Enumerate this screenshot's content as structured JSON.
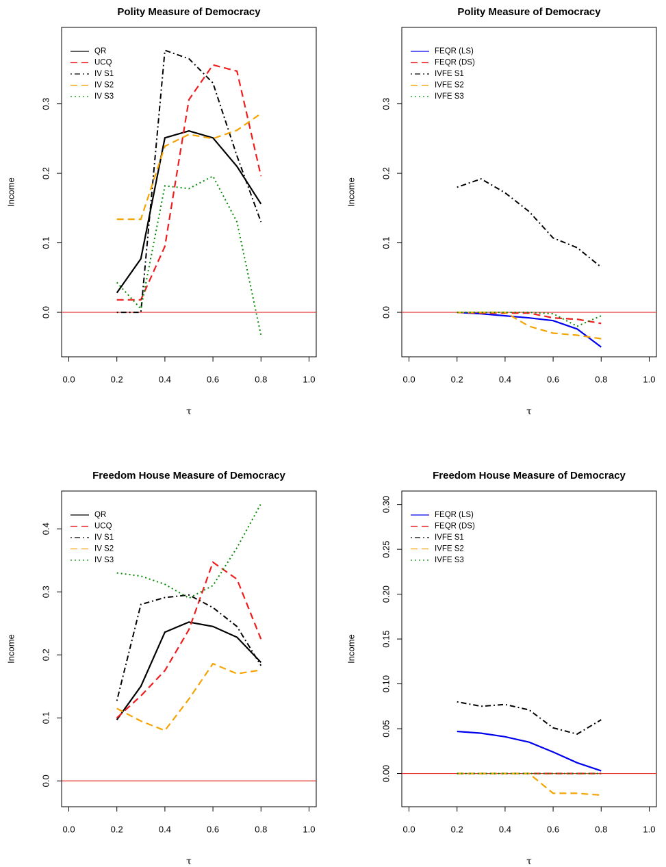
{
  "chart_data": [
    {
      "type": "line",
      "title": "Polity Measure of Democracy",
      "xlabel": "τ",
      "ylabel": "Income",
      "x": [
        0.2,
        0.3,
        0.4,
        0.5,
        0.6,
        0.7,
        0.8
      ],
      "xlim": [
        -0.03,
        1.03
      ],
      "ylim": [
        -0.064,
        0.41
      ],
      "xticks": [
        {
          "value": 0,
          "label": "0.0"
        },
        {
          "value": 0.2,
          "label": "0.2"
        },
        {
          "value": 0.4,
          "label": "0.4"
        },
        {
          "value": 0.6,
          "label": "0.6"
        },
        {
          "value": 0.8,
          "label": "0.8"
        },
        {
          "value": 1,
          "label": "1.0"
        }
      ],
      "yticks": [
        {
          "value": 0,
          "label": "0.0"
        },
        {
          "value": 0.1,
          "label": "0.1"
        },
        {
          "value": 0.2,
          "label": "0.2"
        },
        {
          "value": 0.3,
          "label": "0.3"
        }
      ],
      "hline": 0,
      "hline_color": "#e8322e",
      "legend": "top-left",
      "series": [
        {
          "name": "QR",
          "color": "#000000",
          "linestyle": "solid",
          "values": [
            0.028,
            0.077,
            0.251,
            0.261,
            0.251,
            0.21,
            0.156
          ]
        },
        {
          "name": "UCQ",
          "color": "#ee1c1c",
          "linestyle": "dashed",
          "values": [
            0.018,
            0.018,
            0.095,
            0.306,
            0.356,
            0.347,
            0.196
          ]
        },
        {
          "name": "IV S1",
          "color": "#000000",
          "linestyle": "dotdash",
          "values": [
            0,
            0,
            0.377,
            0.365,
            0.33,
            0.225,
            0.13
          ]
        },
        {
          "name": "IV S2",
          "color": "#f5a300",
          "linestyle": "dashed",
          "values": [
            0.134,
            0.134,
            0.239,
            0.256,
            0.25,
            0.262,
            0.286
          ]
        },
        {
          "name": "IV S3",
          "color": "#008a00",
          "linestyle": "dotted",
          "values": [
            0.043,
            0.005,
            0.182,
            0.178,
            0.196,
            0.13,
            -0.033
          ]
        }
      ]
    },
    {
      "type": "line",
      "title": "Polity Measure of Democracy",
      "xlabel": "τ",
      "ylabel": "Income",
      "x": [
        0.2,
        0.3,
        0.4,
        0.5,
        0.6,
        0.7,
        0.8
      ],
      "xlim": [
        -0.03,
        1.03
      ],
      "ylim": [
        -0.064,
        0.41
      ],
      "xticks": [
        {
          "value": 0,
          "label": "0.0"
        },
        {
          "value": 0.2,
          "label": "0.2"
        },
        {
          "value": 0.4,
          "label": "0.4"
        },
        {
          "value": 0.6,
          "label": "0.6"
        },
        {
          "value": 0.8,
          "label": "0.8"
        },
        {
          "value": 1,
          "label": "1.0"
        }
      ],
      "yticks": [
        {
          "value": 0,
          "label": "0.0"
        },
        {
          "value": 0.1,
          "label": "0.1"
        },
        {
          "value": 0.2,
          "label": "0.2"
        },
        {
          "value": 0.3,
          "label": "0.3"
        }
      ],
      "hline": 0,
      "hline_color": "#e8322e",
      "legend": "top-left",
      "series": [
        {
          "name": "FEQR (LS)",
          "color": "#0000ee",
          "linestyle": "solid",
          "values": [
            0,
            -0.002,
            -0.005,
            -0.008,
            -0.012,
            -0.024,
            -0.05
          ]
        },
        {
          "name": "FEQR (DS)",
          "color": "#ee1c1c",
          "linestyle": "dashed",
          "values": [
            0,
            -0.001,
            -0.001,
            -0.001,
            -0.008,
            -0.01,
            -0.016
          ]
        },
        {
          "name": "IVFE S1",
          "color": "#000000",
          "linestyle": "dotdash",
          "values": [
            0.18,
            0.192,
            0.172,
            0.145,
            0.107,
            0.093,
            0.065
          ]
        },
        {
          "name": "IVFE S2",
          "color": "#f5a300",
          "linestyle": "dashed",
          "values": [
            0,
            0,
            0,
            -0.02,
            -0.03,
            -0.033,
            -0.038
          ]
        },
        {
          "name": "IVFE S3",
          "color": "#008a00",
          "linestyle": "dotted",
          "values": [
            0,
            0,
            0,
            0,
            -0.002,
            -0.02,
            -0.005
          ]
        }
      ]
    },
    {
      "type": "line",
      "title": "Freedom House Measure of Democracy",
      "xlabel": "τ",
      "ylabel": "Income",
      "x": [
        0.2,
        0.3,
        0.4,
        0.5,
        0.6,
        0.7,
        0.8
      ],
      "xlim": [
        -0.03,
        1.03
      ],
      "ylim": [
        -0.041,
        0.46
      ],
      "xticks": [
        {
          "value": 0,
          "label": "0.0"
        },
        {
          "value": 0.2,
          "label": "0.2"
        },
        {
          "value": 0.4,
          "label": "0.4"
        },
        {
          "value": 0.6,
          "label": "0.6"
        },
        {
          "value": 0.8,
          "label": "0.8"
        },
        {
          "value": 1,
          "label": "1.0"
        }
      ],
      "yticks": [
        {
          "value": 0,
          "label": "0.0"
        },
        {
          "value": 0.1,
          "label": "0.1"
        },
        {
          "value": 0.2,
          "label": "0.2"
        },
        {
          "value": 0.3,
          "label": "0.3"
        },
        {
          "value": 0.4,
          "label": "0.4"
        }
      ],
      "hline": 0,
      "hline_color": "#e8322e",
      "legend": "top-left",
      "series": [
        {
          "name": "QR",
          "color": "#000000",
          "linestyle": "solid",
          "values": [
            0.097,
            0.15,
            0.236,
            0.252,
            0.245,
            0.228,
            0.188
          ]
        },
        {
          "name": "UCQ",
          "color": "#ee1c1c",
          "linestyle": "dashed",
          "values": [
            0.1,
            0.135,
            0.175,
            0.24,
            0.347,
            0.32,
            0.225
          ]
        },
        {
          "name": "IV S1",
          "color": "#000000",
          "linestyle": "dotdash",
          "values": [
            0.127,
            0.28,
            0.291,
            0.295,
            0.275,
            0.245,
            0.183
          ]
        },
        {
          "name": "IV S2",
          "color": "#f5a300",
          "linestyle": "dashed",
          "values": [
            0.115,
            0.095,
            0.08,
            0.13,
            0.186,
            0.17,
            0.176
          ]
        },
        {
          "name": "IV S3",
          "color": "#008a00",
          "linestyle": "dotted",
          "values": [
            0.33,
            0.325,
            0.312,
            0.29,
            0.31,
            0.37,
            0.44
          ]
        }
      ]
    },
    {
      "type": "line",
      "title": "Freedom House Measure of Democracy",
      "xlabel": "τ",
      "ylabel": "Income",
      "x": [
        0.2,
        0.3,
        0.4,
        0.5,
        0.6,
        0.7,
        0.8
      ],
      "xlim": [
        -0.03,
        1.03
      ],
      "ylim": [
        -0.037,
        0.315
      ],
      "xticks": [
        {
          "value": 0,
          "label": "0.0"
        },
        {
          "value": 0.2,
          "label": "0.2"
        },
        {
          "value": 0.4,
          "label": "0.4"
        },
        {
          "value": 0.6,
          "label": "0.6"
        },
        {
          "value": 0.8,
          "label": "0.8"
        },
        {
          "value": 1,
          "label": "1.0"
        }
      ],
      "yticks": [
        {
          "value": 0,
          "label": "0.00"
        },
        {
          "value": 0.05,
          "label": "0.05"
        },
        {
          "value": 0.1,
          "label": "0.10"
        },
        {
          "value": 0.15,
          "label": "0.15"
        },
        {
          "value": 0.2,
          "label": "0.20"
        },
        {
          "value": 0.25,
          "label": "0.25"
        },
        {
          "value": 0.3,
          "label": "0.30"
        }
      ],
      "hline": 0,
      "hline_color": "#e8322e",
      "legend": "top-left",
      "series": [
        {
          "name": "FEQR (LS)",
          "color": "#0000ee",
          "linestyle": "solid",
          "values": [
            0.047,
            0.045,
            0.041,
            0.035,
            0.024,
            0.012,
            0.003
          ]
        },
        {
          "name": "FEQR (DS)",
          "color": "#ee1c1c",
          "linestyle": "dashed",
          "values": [
            0,
            0,
            0,
            0,
            0,
            0,
            0
          ]
        },
        {
          "name": "IVFE S1",
          "color": "#000000",
          "linestyle": "dotdash",
          "values": [
            0.08,
            0.075,
            0.077,
            0.071,
            0.051,
            0.044,
            0.06
          ]
        },
        {
          "name": "IVFE S2",
          "color": "#f5a300",
          "linestyle": "dashed",
          "values": [
            0,
            0,
            0,
            0,
            -0.022,
            -0.022,
            -0.024
          ]
        },
        {
          "name": "IVFE S3",
          "color": "#008a00",
          "linestyle": "dotted",
          "values": [
            0,
            0,
            0,
            0,
            0,
            0,
            0
          ]
        }
      ]
    }
  ]
}
